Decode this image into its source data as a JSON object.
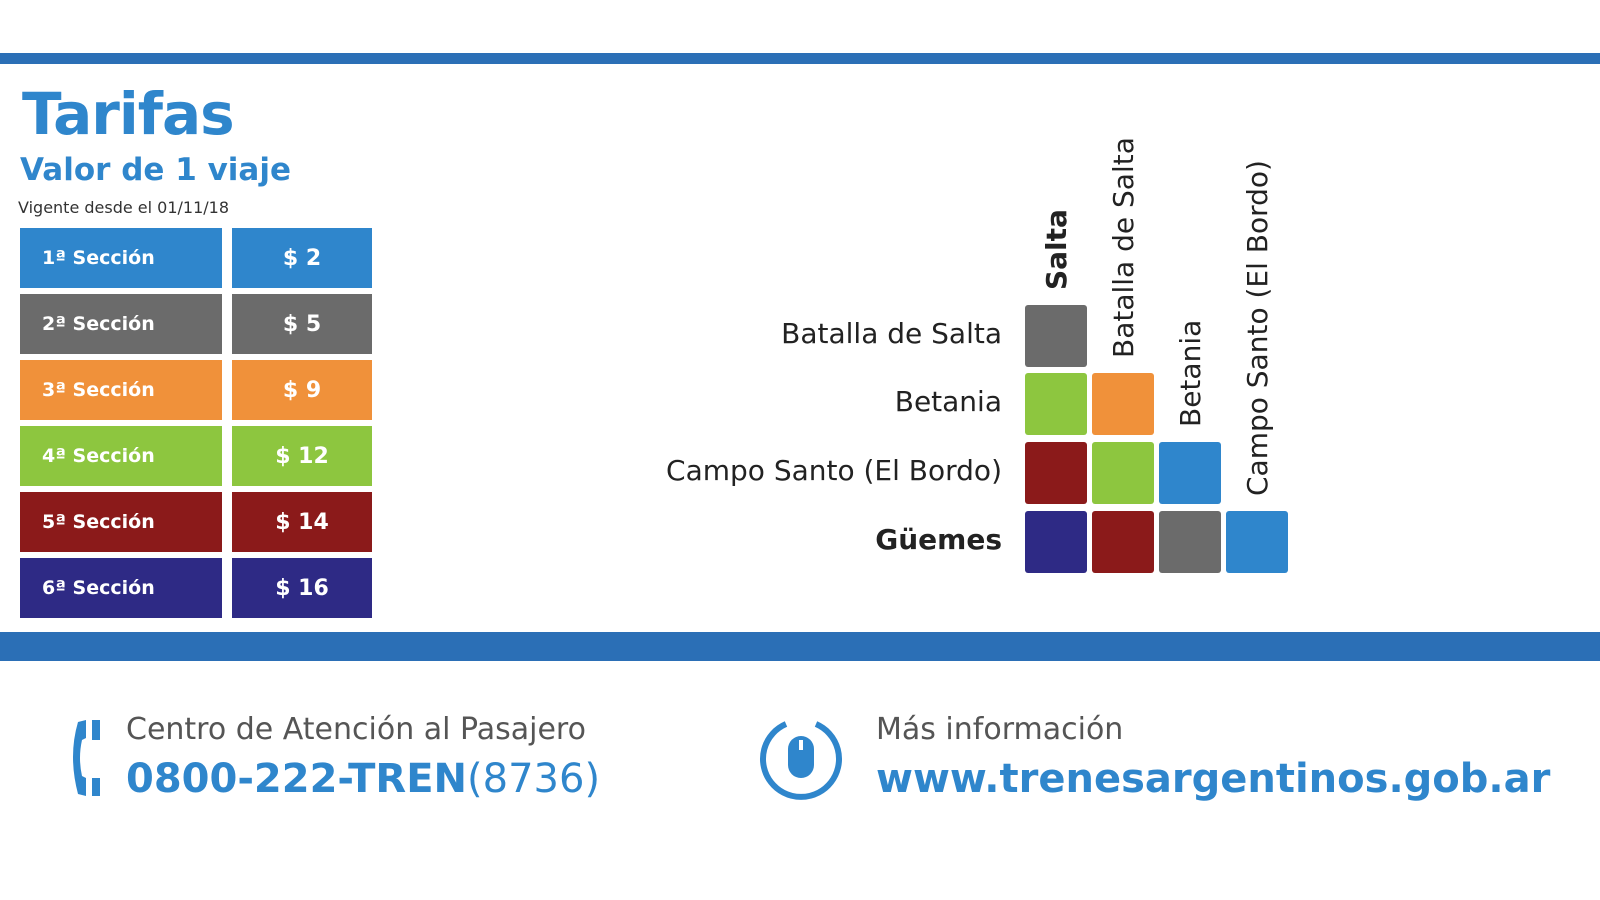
{
  "title": "Tarifas",
  "subtitle": "Valor de 1 viaje",
  "valid_from": "Vigente desde el 01/11/18",
  "sections": [
    {
      "label": "1ª Sección",
      "price": "$ 2",
      "color": "#2f86cc"
    },
    {
      "label": "2ª Sección",
      "price": "$ 5",
      "color": "#6b6b6b"
    },
    {
      "label": "3ª Sección",
      "price": "$ 9",
      "color": "#f0913a"
    },
    {
      "label": "4ª Sección",
      "price": "$ 12",
      "color": "#8dc63f"
    },
    {
      "label": "5ª Sección",
      "price": "$ 14",
      "color": "#8b1a1a"
    },
    {
      "label": "6ª Sección",
      "price": "$ 16",
      "color": "#2e2a85"
    }
  ],
  "matrix": {
    "columns": [
      "Salta",
      "Batalla de Salta",
      "Betania",
      "Campo Santo (El Bordo)"
    ],
    "rows": [
      {
        "label": "Batalla de Salta",
        "sections": [
          2
        ]
      },
      {
        "label": "Betania",
        "sections": [
          4,
          3
        ]
      },
      {
        "label": "Campo Santo (El Bordo)",
        "sections": [
          5,
          4,
          1
        ]
      },
      {
        "label": "Güemes",
        "sections": [
          6,
          5,
          2,
          1
        ]
      }
    ]
  },
  "footer": {
    "phone_label": "Centro de Atención al Pasajero",
    "phone_main": "0800-222-TREN",
    "phone_digits": "(8736)",
    "info_label": "Más información",
    "url": "www.trenesargentinos.gob.ar"
  }
}
